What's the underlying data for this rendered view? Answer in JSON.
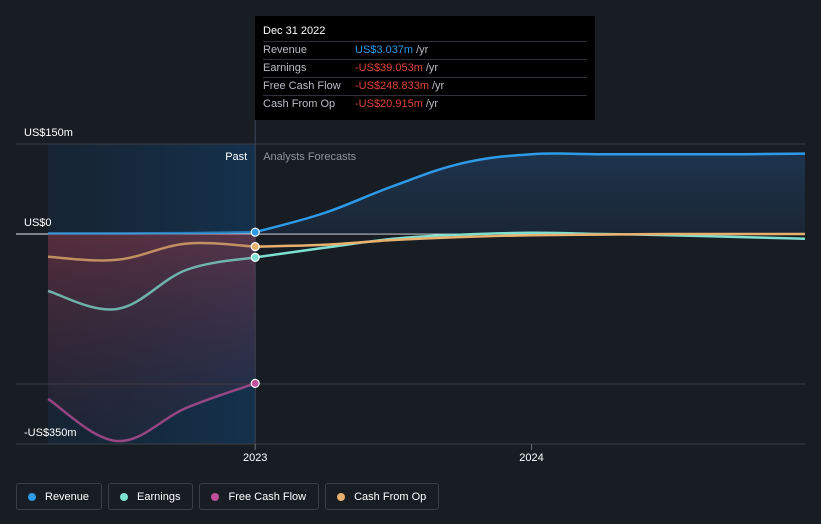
{
  "tooltip": {
    "date": "Dec 31 2022",
    "rows": [
      {
        "name": "Revenue",
        "value": "US$3.037m",
        "unit": "/yr",
        "color": "#2d9be8"
      },
      {
        "name": "Earnings",
        "value": "-US$39.053m",
        "unit": "/yr",
        "color": "#e0453b"
      },
      {
        "name": "Free Cash Flow",
        "value": "-US$248.833m",
        "unit": "/yr",
        "color": "#e0453b"
      },
      {
        "name": "Cash From Op",
        "value": "-US$20.915m",
        "unit": "/yr",
        "color": "#e0453b"
      }
    ]
  },
  "chart_data": {
    "type": "line",
    "y_tick_labels": [
      "US$150m",
      "US$0",
      "-US$350m"
    ],
    "y_ticks": [
      150,
      0,
      -350
    ],
    "ylim": [
      -350,
      150
    ],
    "x_tick_labels": [
      "2023",
      "2024"
    ],
    "x_ticks": [
      2023.0,
      2024.0
    ],
    "xlim": [
      2022.25,
      2024.99
    ],
    "past_label": "Past",
    "forecast_label": "Analysts Forecasts",
    "divider_x": 2023.0,
    "grid": true,
    "legend_position": "bottom-left",
    "series": [
      {
        "name": "Revenue",
        "color": "#2d9be8",
        "x": [
          2022.25,
          2022.5,
          2022.75,
          2023.0,
          2023.25,
          2023.5,
          2023.75,
          2024.0,
          2024.25,
          2024.5,
          2024.75,
          2024.99
        ],
        "y": [
          1,
          1,
          1.5,
          3,
          35,
          80,
          118,
          133,
          133,
          133,
          133,
          134
        ]
      },
      {
        "name": "Earnings",
        "color": "#7ee0d0",
        "x": [
          2022.25,
          2022.5,
          2022.75,
          2023.0,
          2023.25,
          2023.5,
          2023.75,
          2024.0,
          2024.25,
          2024.5,
          2024.75,
          2024.99
        ],
        "y": [
          -95,
          -125,
          -60,
          -39,
          -23,
          -8,
          -1,
          2,
          0,
          -2,
          -5,
          -8
        ]
      },
      {
        "name": "Free Cash Flow",
        "color": "#c0509a",
        "x": [
          2022.25,
          2022.5,
          2022.75,
          2023.0
        ],
        "y": [
          -275,
          -345,
          -290,
          -249
        ]
      },
      {
        "name": "Cash From Op",
        "color": "#e8b06c",
        "x": [
          2022.25,
          2022.5,
          2022.75,
          2023.0,
          2023.25,
          2023.5,
          2023.75,
          2024.0,
          2024.25,
          2024.5,
          2024.75,
          2024.99
        ],
        "y": [
          -38,
          -43,
          -16,
          -21,
          -18,
          -10,
          -5,
          -2,
          -1,
          0,
          0,
          0
        ]
      }
    ]
  },
  "legend": {
    "items": [
      {
        "label": "Revenue",
        "color": "#2d9be8"
      },
      {
        "label": "Earnings",
        "color": "#7ee0d0"
      },
      {
        "label": "Free Cash Flow",
        "color": "#c0509a"
      },
      {
        "label": "Cash From Op",
        "color": "#e8b06c"
      }
    ]
  }
}
